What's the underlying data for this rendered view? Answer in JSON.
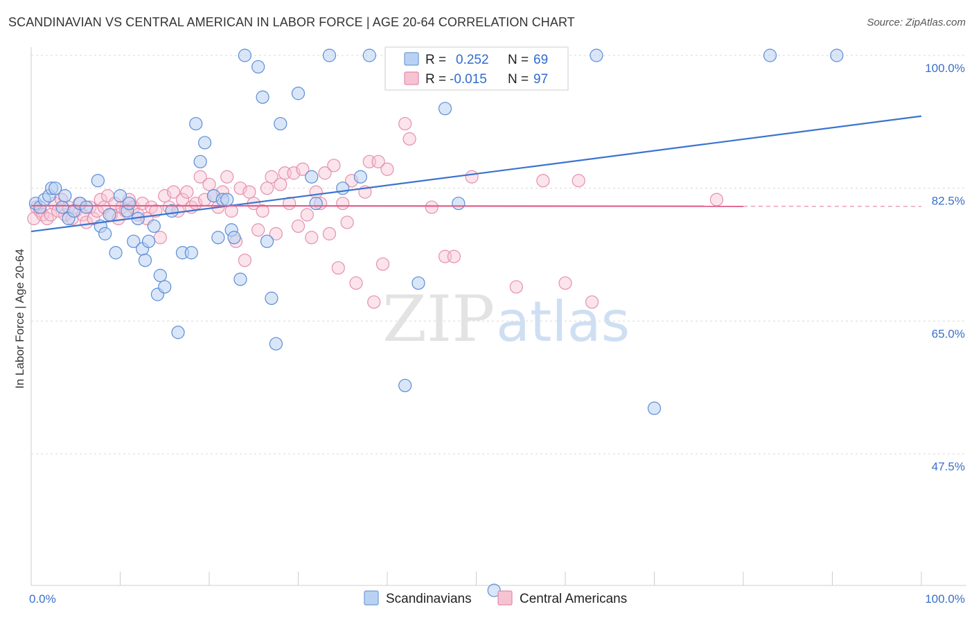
{
  "title": "SCANDINAVIAN VS CENTRAL AMERICAN IN LABOR FORCE | AGE 20-64 CORRELATION CHART",
  "source": "Source: ZipAtlas.com",
  "watermark": {
    "zip": "ZIP",
    "atlas": "atlas"
  },
  "colors": {
    "blue": "#3b73d0",
    "blue_fill": "#b9d2f3",
    "pink": "#e0608a",
    "pink_fill": "#f6c3d3",
    "tick_text": "#3a6fc9",
    "grid": "#d8d8d8"
  },
  "legend": {
    "rows": [
      {
        "r_label": "R =",
        "r_value": "0.252",
        "n_label": "N =",
        "n_value": "69",
        "series": "Scandinavians"
      },
      {
        "r_label": "R =",
        "r_value": "-0.015",
        "n_label": "N =",
        "n_value": "97",
        "series": "Central Americans"
      }
    ]
  },
  "chart_data": {
    "type": "scatter",
    "title": "SCANDINAVIAN VS CENTRAL AMERICAN IN LABOR FORCE | AGE 20-64 CORRELATION CHART",
    "xlabel": "",
    "ylabel": "In Labor Force | Age 20-64",
    "xlim": [
      0,
      100
    ],
    "ylim": [
      30,
      101.5
    ],
    "y_ticks": [
      {
        "value": 47.5,
        "label": "47.5%"
      },
      {
        "value": 65.0,
        "label": "65.0%"
      },
      {
        "value": 82.5,
        "label": "82.5%"
      },
      {
        "value": 100.0,
        "label": "100.0%"
      }
    ],
    "x_tick_labels": [
      {
        "value": 0,
        "label": "0.0%"
      },
      {
        "value": 100,
        "label": "100.0%"
      }
    ],
    "grid": true,
    "legend_position": "top-center",
    "series": [
      {
        "name": "Scandinavians",
        "color": "#3b73d0",
        "trend": {
          "x": [
            0,
            100
          ],
          "y": [
            76.8,
            92.0
          ],
          "dashed_from": null
        },
        "points": [
          [
            0.5,
            80.5
          ],
          [
            1.0,
            80.0
          ],
          [
            1.5,
            81.0
          ],
          [
            2.0,
            81.5
          ],
          [
            2.3,
            82.5
          ],
          [
            2.7,
            82.5
          ],
          [
            3.5,
            80.0
          ],
          [
            3.8,
            81.5
          ],
          [
            4.2,
            78.5
          ],
          [
            4.8,
            79.5
          ],
          [
            5.5,
            80.5
          ],
          [
            6.2,
            80.0
          ],
          [
            7.5,
            83.5
          ],
          [
            7.8,
            77.5
          ],
          [
            8.3,
            76.5
          ],
          [
            8.8,
            79.0
          ],
          [
            9.5,
            74.0
          ],
          [
            10.0,
            81.5
          ],
          [
            10.8,
            79.5
          ],
          [
            11.0,
            80.5
          ],
          [
            11.5,
            75.5
          ],
          [
            12.0,
            78.5
          ],
          [
            12.5,
            74.5
          ],
          [
            12.8,
            73.0
          ],
          [
            13.2,
            75.5
          ],
          [
            13.8,
            77.5
          ],
          [
            14.2,
            68.5
          ],
          [
            14.5,
            71.0
          ],
          [
            15.0,
            69.5
          ],
          [
            15.8,
            79.5
          ],
          [
            16.5,
            63.5
          ],
          [
            17.0,
            74.0
          ],
          [
            18.0,
            74.0
          ],
          [
            18.5,
            91.0
          ],
          [
            19.0,
            86.0
          ],
          [
            19.5,
            88.5
          ],
          [
            20.5,
            81.5
          ],
          [
            21.0,
            76.0
          ],
          [
            21.5,
            81.0
          ],
          [
            22.0,
            81.0
          ],
          [
            22.5,
            77.0
          ],
          [
            22.8,
            76.0
          ],
          [
            23.5,
            70.5
          ],
          [
            24.0,
            100.0
          ],
          [
            25.5,
            98.5
          ],
          [
            26.0,
            94.5
          ],
          [
            26.5,
            75.5
          ],
          [
            27.0,
            68.0
          ],
          [
            27.5,
            62.0
          ],
          [
            28.0,
            91.0
          ],
          [
            30.0,
            95.0
          ],
          [
            31.5,
            84.0
          ],
          [
            32.0,
            80.5
          ],
          [
            33.5,
            100.0
          ],
          [
            35.0,
            82.5
          ],
          [
            37.0,
            84.0
          ],
          [
            38.0,
            100.0
          ],
          [
            42.0,
            56.5
          ],
          [
            43.5,
            70.0
          ],
          [
            44.0,
            100.0
          ],
          [
            45.0,
            99.0
          ],
          [
            46.5,
            93.0
          ],
          [
            48.0,
            80.5
          ],
          [
            52.0,
            29.5
          ],
          [
            59.0,
            100.0
          ],
          [
            63.5,
            100.0
          ],
          [
            70.0,
            53.5
          ],
          [
            83.0,
            100.0
          ],
          [
            90.5,
            100.0
          ]
        ]
      },
      {
        "name": "Central Americans",
        "color": "#e0608a",
        "trend": {
          "x": [
            0,
            100
          ],
          "y": [
            80.2,
            80.1
          ],
          "dashed_from": 80
        },
        "points": [
          [
            0.3,
            78.5
          ],
          [
            0.6,
            80.0
          ],
          [
            1.0,
            79.5
          ],
          [
            1.3,
            79.0
          ],
          [
            1.8,
            78.5
          ],
          [
            2.2,
            79.0
          ],
          [
            2.6,
            80.5
          ],
          [
            3.0,
            79.5
          ],
          [
            3.4,
            81.0
          ],
          [
            3.8,
            79.0
          ],
          [
            4.2,
            80.0
          ],
          [
            4.6,
            78.5
          ],
          [
            5.0,
            79.5
          ],
          [
            5.4,
            80.5
          ],
          [
            5.8,
            79.0
          ],
          [
            6.2,
            78.0
          ],
          [
            6.6,
            80.0
          ],
          [
            7.0,
            78.5
          ],
          [
            7.4,
            79.5
          ],
          [
            7.8,
            81.0
          ],
          [
            8.2,
            80.0
          ],
          [
            8.6,
            81.5
          ],
          [
            9.0,
            79.0
          ],
          [
            9.4,
            80.5
          ],
          [
            9.8,
            78.5
          ],
          [
            10.2,
            80.0
          ],
          [
            10.6,
            79.5
          ],
          [
            11.0,
            81.0
          ],
          [
            11.5,
            80.0
          ],
          [
            12.0,
            79.0
          ],
          [
            12.5,
            80.5
          ],
          [
            13.0,
            78.5
          ],
          [
            13.5,
            80.0
          ],
          [
            14.0,
            79.5
          ],
          [
            14.5,
            76.0
          ],
          [
            15.0,
            81.5
          ],
          [
            15.5,
            80.0
          ],
          [
            16.0,
            82.0
          ],
          [
            16.5,
            79.5
          ],
          [
            17.0,
            81.0
          ],
          [
            17.5,
            82.0
          ],
          [
            18.0,
            80.0
          ],
          [
            18.5,
            80.5
          ],
          [
            19.0,
            84.0
          ],
          [
            19.5,
            81.0
          ],
          [
            20.0,
            83.0
          ],
          [
            20.5,
            81.5
          ],
          [
            21.0,
            80.0
          ],
          [
            21.5,
            82.0
          ],
          [
            22.0,
            84.0
          ],
          [
            22.5,
            79.5
          ],
          [
            23.0,
            75.5
          ],
          [
            23.5,
            82.5
          ],
          [
            24.0,
            73.0
          ],
          [
            24.5,
            82.0
          ],
          [
            25.0,
            80.5
          ],
          [
            25.5,
            77.0
          ],
          [
            26.0,
            79.5
          ],
          [
            26.5,
            82.5
          ],
          [
            27.0,
            84.0
          ],
          [
            27.5,
            76.5
          ],
          [
            28.0,
            83.0
          ],
          [
            28.5,
            84.5
          ],
          [
            29.0,
            80.5
          ],
          [
            29.5,
            84.5
          ],
          [
            30.0,
            77.5
          ],
          [
            30.5,
            85.0
          ],
          [
            31.0,
            79.0
          ],
          [
            31.5,
            76.0
          ],
          [
            32.0,
            82.0
          ],
          [
            32.5,
            80.5
          ],
          [
            33.0,
            84.5
          ],
          [
            33.5,
            76.5
          ],
          [
            34.0,
            85.5
          ],
          [
            34.5,
            72.0
          ],
          [
            35.0,
            80.5
          ],
          [
            35.5,
            78.0
          ],
          [
            36.0,
            83.5
          ],
          [
            36.5,
            70.0
          ],
          [
            37.5,
            82.0
          ],
          [
            38.0,
            86.0
          ],
          [
            38.5,
            67.5
          ],
          [
            39.0,
            86.0
          ],
          [
            39.5,
            72.5
          ],
          [
            40.0,
            85.0
          ],
          [
            42.0,
            91.0
          ],
          [
            42.5,
            89.0
          ],
          [
            45.0,
            80.0
          ],
          [
            46.5,
            73.5
          ],
          [
            47.5,
            73.5
          ],
          [
            49.5,
            84.0
          ],
          [
            54.5,
            69.5
          ],
          [
            57.5,
            83.5
          ],
          [
            60.0,
            70.0
          ],
          [
            61.5,
            83.5
          ],
          [
            63.0,
            67.5
          ],
          [
            77.0,
            81.0
          ]
        ]
      }
    ]
  }
}
